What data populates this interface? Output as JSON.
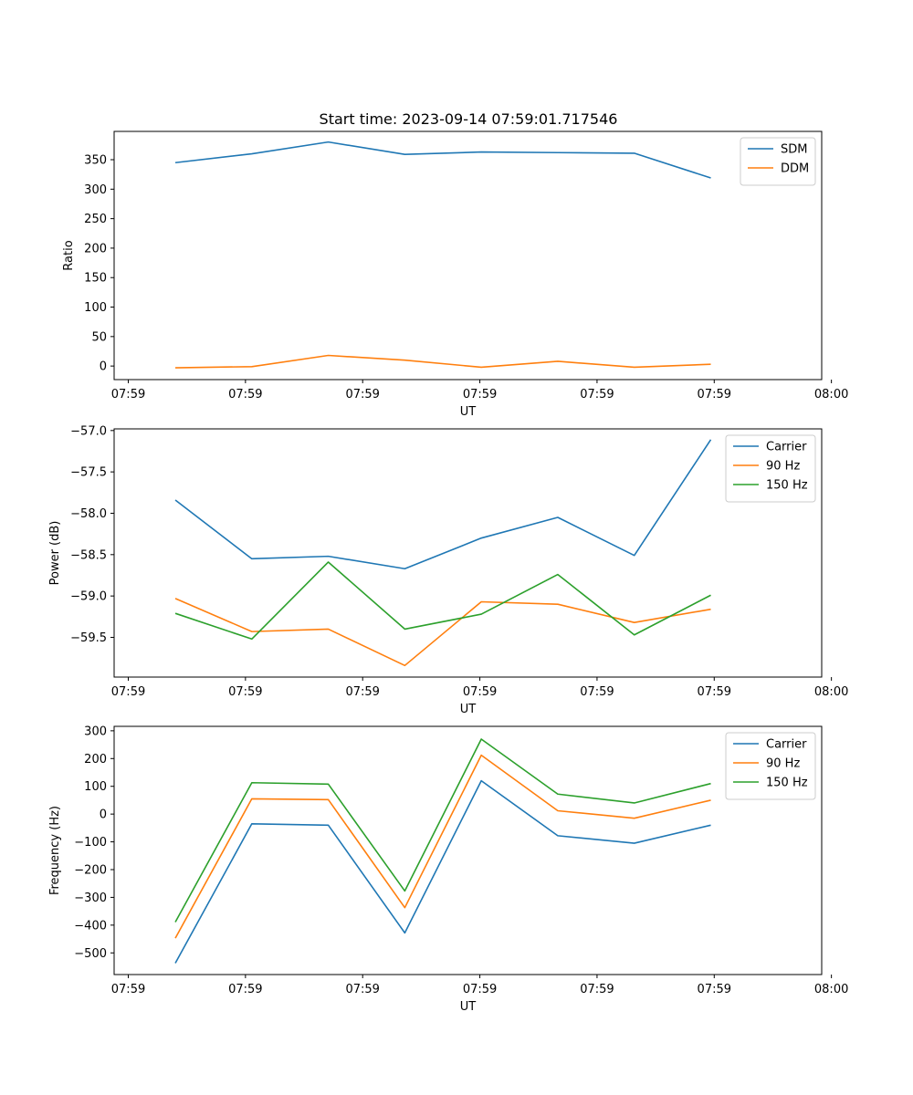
{
  "figure": {
    "title": "Start time: 2023-09-14 07:59:01.717546"
  },
  "chart_data": [
    {
      "type": "line",
      "title": "Start time: 2023-09-14 07:59:01.717546",
      "xlabel": "UT",
      "ylabel": "Ratio",
      "x_tick_labels": [
        "07:59",
        "07:59",
        "07:59",
        "07:59",
        "07:59",
        "07:59",
        "08:00"
      ],
      "x": [
        1,
        2,
        3,
        4,
        5,
        6,
        7,
        8
      ],
      "xlim": [
        0.2,
        9.45
      ],
      "ylim": [
        -23,
        398
      ],
      "y_ticks": [
        0,
        50,
        100,
        150,
        200,
        250,
        300,
        350
      ],
      "y_tick_labels": [
        "0",
        "50",
        "100",
        "150",
        "200",
        "250",
        "300",
        "350"
      ],
      "legend_position": "top-right",
      "series": [
        {
          "name": "SDM",
          "color": "#1f77b4",
          "values": [
            345,
            360,
            380,
            359,
            363,
            362,
            361,
            319
          ]
        },
        {
          "name": "DDM",
          "color": "#ff7f0e",
          "values": [
            -3,
            -1,
            18,
            10,
            -2,
            8,
            -2,
            3
          ]
        }
      ]
    },
    {
      "type": "line",
      "xlabel": "UT",
      "ylabel": "Power (dB)",
      "x_tick_labels": [
        "07:59",
        "07:59",
        "07:59",
        "07:59",
        "07:59",
        "07:59",
        "08:00"
      ],
      "x": [
        1,
        2,
        3,
        4,
        5,
        6,
        7,
        8
      ],
      "xlim": [
        0.2,
        9.45
      ],
      "ylim": [
        -59.98,
        -56.98
      ],
      "y_ticks": [
        -59.5,
        -59.0,
        -58.5,
        -58.0,
        -57.5,
        -57.0
      ],
      "y_tick_labels": [
        "−59.5",
        "−59.0",
        "−58.5",
        "−58.0",
        "−57.5",
        "−57.0"
      ],
      "legend_position": "top-right",
      "series": [
        {
          "name": "Carrier",
          "color": "#1f77b4",
          "values": [
            -57.84,
            -58.55,
            -58.52,
            -58.67,
            -58.3,
            -58.05,
            -58.51,
            -57.11
          ]
        },
        {
          "name": "90 Hz",
          "color": "#ff7f0e",
          "values": [
            -59.03,
            -59.43,
            -59.4,
            -59.84,
            -59.07,
            -59.1,
            -59.32,
            -59.16
          ]
        },
        {
          "name": "150 Hz",
          "color": "#2ca02c",
          "values": [
            -59.21,
            -59.52,
            -58.59,
            -59.4,
            -59.22,
            -58.74,
            -59.47,
            -58.99
          ]
        }
      ]
    },
    {
      "type": "line",
      "xlabel": "UT",
      "ylabel": "Frequency (Hz)",
      "x_tick_labels": [
        "07:59",
        "07:59",
        "07:59",
        "07:59",
        "07:59",
        "07:59",
        "08:00"
      ],
      "x": [
        1,
        2,
        3,
        4,
        5,
        6,
        7,
        8
      ],
      "xlim": [
        0.2,
        9.45
      ],
      "ylim": [
        -578,
        316
      ],
      "y_ticks": [
        -500,
        -400,
        -300,
        -200,
        -100,
        0,
        100,
        200,
        300
      ],
      "y_tick_labels": [
        "−500",
        "−400",
        "−300",
        "−200",
        "−100",
        "0",
        "100",
        "200",
        "300"
      ],
      "legend_position": "top-right",
      "series": [
        {
          "name": "Carrier",
          "color": "#1f77b4",
          "values": [
            -537,
            -35,
            -40,
            -428,
            120,
            -78,
            -105,
            -40
          ]
        },
        {
          "name": "90 Hz",
          "color": "#ff7f0e",
          "values": [
            -447,
            55,
            52,
            -337,
            212,
            12,
            -15,
            50
          ]
        },
        {
          "name": "150 Hz",
          "color": "#2ca02c",
          "values": [
            -389,
            113,
            108,
            -277,
            270,
            72,
            40,
            110
          ]
        }
      ]
    }
  ]
}
